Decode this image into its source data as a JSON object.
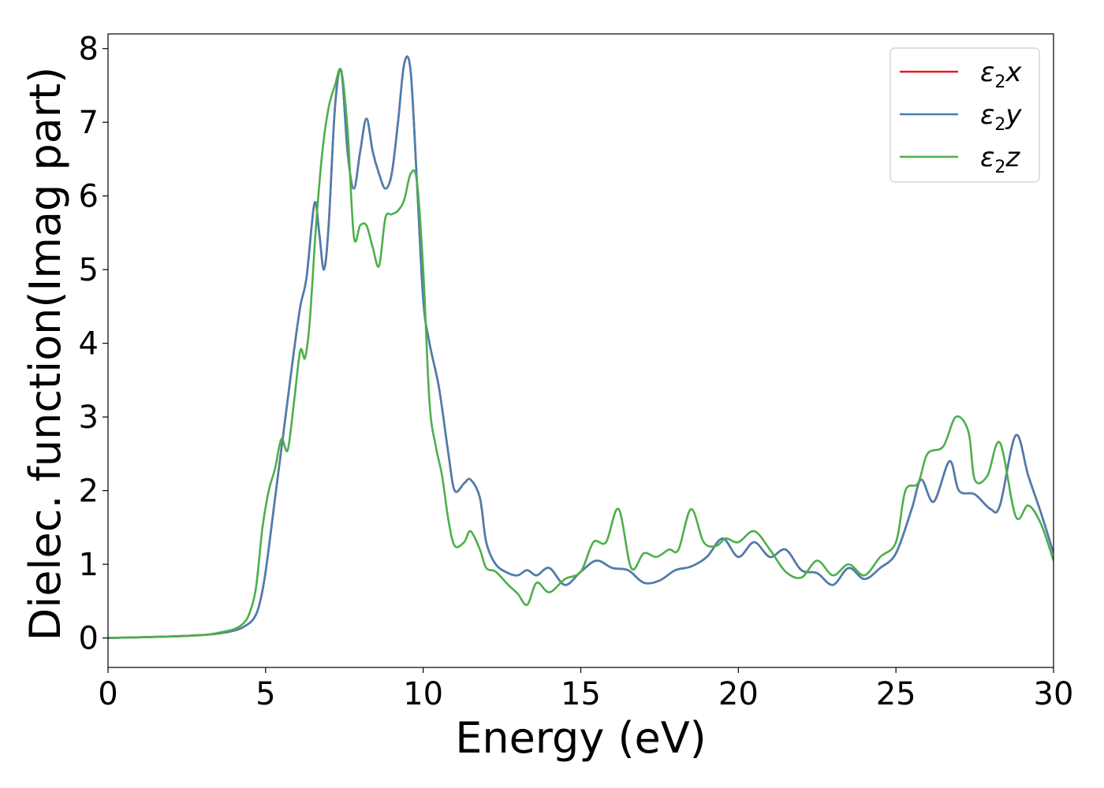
{
  "chart_data": {
    "type": "line",
    "xlabel": "Energy (eV)",
    "ylabel": "Dielec. function(Imag part)",
    "xlim": [
      0,
      30
    ],
    "ylim": [
      -0.4,
      8.2
    ],
    "xticks": [
      0,
      5,
      10,
      15,
      20,
      25,
      30
    ],
    "yticks": [
      0,
      1,
      2,
      3,
      4,
      5,
      6,
      7,
      8
    ],
    "grid": false,
    "legend_position": "top-right",
    "series": [
      {
        "name": "ε2x",
        "legend_base": "ε",
        "legend_sub": "2",
        "legend_suffix": "x",
        "color": "#e41a1c",
        "x": [
          0,
          2,
          3,
          3.5,
          4,
          4.3,
          4.6,
          4.8,
          5.0,
          5.3,
          5.6,
          5.9,
          6.1,
          6.3,
          6.55,
          6.7,
          6.85,
          7.0,
          7.2,
          7.4,
          7.6,
          7.8,
          8.0,
          8.2,
          8.4,
          8.6,
          8.8,
          9.0,
          9.2,
          9.4,
          9.6,
          9.8,
          10.0,
          10.2,
          10.5,
          10.8,
          11.0,
          11.3,
          11.5,
          11.8,
          12.0,
          12.3,
          12.7,
          13.0,
          13.3,
          13.6,
          14.0,
          14.5,
          15.0,
          15.5,
          16.0,
          16.5,
          17.0,
          17.5,
          18.0,
          18.5,
          19.0,
          19.5,
          20.0,
          20.5,
          21.0,
          21.5,
          22.0,
          22.5,
          23.0,
          23.5,
          24.0,
          24.5,
          25.0,
          25.5,
          25.8,
          26.2,
          26.7,
          27.0,
          27.5,
          28.0,
          28.3,
          28.8,
          29.2,
          29.6,
          30.0
        ],
        "values": [
          0,
          0.02,
          0.04,
          0.06,
          0.1,
          0.15,
          0.25,
          0.45,
          0.9,
          1.9,
          2.9,
          3.9,
          4.5,
          4.9,
          5.9,
          5.5,
          5.0,
          5.6,
          7.2,
          7.7,
          6.6,
          6.1,
          6.6,
          7.05,
          6.6,
          6.3,
          6.1,
          6.3,
          7.0,
          7.8,
          7.7,
          6.2,
          4.6,
          4.0,
          3.4,
          2.5,
          2.0,
          2.1,
          2.15,
          1.9,
          1.3,
          1.0,
          0.88,
          0.85,
          0.92,
          0.85,
          0.95,
          0.72,
          0.9,
          1.05,
          0.95,
          0.92,
          0.75,
          0.78,
          0.92,
          0.97,
          1.1,
          1.35,
          1.1,
          1.3,
          1.1,
          1.2,
          0.92,
          0.88,
          0.72,
          0.95,
          0.8,
          0.95,
          1.15,
          1.75,
          2.15,
          1.85,
          2.4,
          2.0,
          1.95,
          1.75,
          1.8,
          2.75,
          2.2,
          1.7,
          1.15
        ]
      },
      {
        "name": "ε2y",
        "legend_base": "ε",
        "legend_sub": "2",
        "legend_suffix": "y",
        "color": "#4a7fb0",
        "x": [
          0,
          2,
          3,
          3.5,
          4,
          4.3,
          4.6,
          4.8,
          5.0,
          5.3,
          5.6,
          5.9,
          6.1,
          6.3,
          6.55,
          6.7,
          6.85,
          7.0,
          7.2,
          7.4,
          7.6,
          7.8,
          8.0,
          8.2,
          8.4,
          8.6,
          8.8,
          9.0,
          9.2,
          9.4,
          9.6,
          9.8,
          10.0,
          10.2,
          10.5,
          10.8,
          11.0,
          11.3,
          11.5,
          11.8,
          12.0,
          12.3,
          12.7,
          13.0,
          13.3,
          13.6,
          14.0,
          14.5,
          15.0,
          15.5,
          16.0,
          16.5,
          17.0,
          17.5,
          18.0,
          18.5,
          19.0,
          19.5,
          20.0,
          20.5,
          21.0,
          21.5,
          22.0,
          22.5,
          23.0,
          23.5,
          24.0,
          24.5,
          25.0,
          25.5,
          25.8,
          26.2,
          26.7,
          27.0,
          27.5,
          28.0,
          28.3,
          28.8,
          29.2,
          29.6,
          30.0
        ],
        "values": [
          0,
          0.02,
          0.04,
          0.06,
          0.1,
          0.15,
          0.25,
          0.45,
          0.9,
          1.9,
          2.9,
          3.9,
          4.5,
          4.9,
          5.9,
          5.5,
          5.0,
          5.6,
          7.2,
          7.7,
          6.6,
          6.1,
          6.6,
          7.05,
          6.6,
          6.3,
          6.1,
          6.3,
          7.0,
          7.8,
          7.7,
          6.2,
          4.6,
          4.0,
          3.4,
          2.5,
          2.0,
          2.1,
          2.15,
          1.9,
          1.3,
          1.0,
          0.88,
          0.85,
          0.92,
          0.85,
          0.95,
          0.72,
          0.9,
          1.05,
          0.95,
          0.92,
          0.75,
          0.78,
          0.92,
          0.97,
          1.1,
          1.35,
          1.1,
          1.3,
          1.1,
          1.2,
          0.92,
          0.88,
          0.72,
          0.95,
          0.8,
          0.95,
          1.15,
          1.75,
          2.15,
          1.85,
          2.4,
          2.0,
          1.95,
          1.75,
          1.8,
          2.75,
          2.2,
          1.7,
          1.15
        ]
      },
      {
        "name": "ε2z",
        "legend_base": "ε",
        "legend_sub": "2",
        "legend_suffix": "z",
        "color": "#4daf4a",
        "x": [
          0,
          2,
          3,
          3.5,
          4,
          4.3,
          4.5,
          4.7,
          4.9,
          5.1,
          5.3,
          5.5,
          5.7,
          5.9,
          6.1,
          6.25,
          6.4,
          6.6,
          6.8,
          7.0,
          7.2,
          7.4,
          7.6,
          7.8,
          8.0,
          8.2,
          8.4,
          8.6,
          8.8,
          9.0,
          9.2,
          9.4,
          9.6,
          9.8,
          10.0,
          10.2,
          10.4,
          10.6,
          10.8,
          11.0,
          11.3,
          11.5,
          11.8,
          12.0,
          12.3,
          12.7,
          13.0,
          13.3,
          13.6,
          14.0,
          14.5,
          15.0,
          15.4,
          15.8,
          16.2,
          16.6,
          17.0,
          17.4,
          17.8,
          18.1,
          18.5,
          18.9,
          19.3,
          19.6,
          20.0,
          20.5,
          21.0,
          21.5,
          22.0,
          22.5,
          23.0,
          23.5,
          24.0,
          24.5,
          25.0,
          25.3,
          25.7,
          26.0,
          26.5,
          26.9,
          27.3,
          27.5,
          27.9,
          28.3,
          28.8,
          29.2,
          29.6,
          30.0
        ],
        "values": [
          0,
          0.02,
          0.04,
          0.07,
          0.12,
          0.2,
          0.35,
          0.7,
          1.5,
          2.0,
          2.3,
          2.7,
          2.55,
          3.2,
          3.9,
          3.8,
          4.3,
          5.6,
          6.6,
          7.2,
          7.5,
          7.7,
          6.9,
          5.45,
          5.6,
          5.6,
          5.3,
          5.05,
          5.7,
          5.75,
          5.8,
          5.95,
          6.3,
          6.2,
          5.0,
          3.2,
          2.6,
          2.2,
          1.6,
          1.25,
          1.3,
          1.45,
          1.2,
          0.95,
          0.9,
          0.72,
          0.6,
          0.45,
          0.75,
          0.62,
          0.8,
          0.9,
          1.3,
          1.3,
          1.75,
          0.95,
          1.15,
          1.1,
          1.2,
          1.2,
          1.75,
          1.3,
          1.25,
          1.35,
          1.3,
          1.45,
          1.2,
          0.9,
          0.82,
          1.05,
          0.85,
          1.0,
          0.85,
          1.1,
          1.3,
          2.0,
          2.1,
          2.5,
          2.6,
          3.0,
          2.8,
          2.15,
          2.2,
          2.65,
          1.65,
          1.8,
          1.55,
          1.05
        ]
      }
    ]
  }
}
